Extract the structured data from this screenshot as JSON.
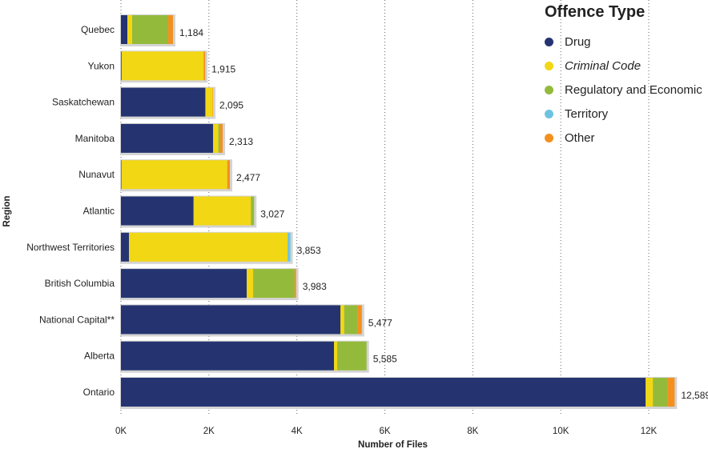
{
  "chart_data": {
    "type": "bar",
    "orientation": "horizontal",
    "stacked": true,
    "title": "",
    "xlabel": "Number of Files",
    "ylabel": "Region",
    "xlim": [
      0,
      12800
    ],
    "xticks": [
      0,
      2000,
      4000,
      6000,
      8000,
      10000,
      12000
    ],
    "xtick_labels": [
      "0K",
      "2K",
      "4K",
      "6K",
      "8K",
      "10K",
      "12K"
    ],
    "grid": "vertical dotted",
    "legend_title": "Offence Type",
    "legend_position": "top-right",
    "categories": [
      "Quebec",
      "Yukon",
      "Saskatchewan",
      "Manitoba",
      "Nunavut",
      "Atlantic",
      "Northwest Territories",
      "British Columbia",
      "National Capital**",
      "Alberta",
      "Ontario"
    ],
    "totals": [
      1184,
      1915,
      2095,
      2313,
      2477,
      3027,
      3853,
      3983,
      5477,
      5585,
      12589
    ],
    "total_labels": [
      "1,184",
      "1,915",
      "2,095",
      "2,313",
      "2,477",
      "3,027",
      "3,853",
      "3,983",
      "5,477",
      "5,585",
      "12,589"
    ],
    "series": [
      {
        "name": "Drug",
        "color": "#253471",
        "values": [
          146,
          15,
          1920,
          2095,
          10,
          1652,
          182,
          2860,
          4991,
          4845,
          11930
        ]
      },
      {
        "name": "Criminal Code",
        "color": "#f2d714",
        "italic": true,
        "values": [
          109,
          1865,
          165,
          120,
          2407,
          1302,
          3607,
          146,
          85,
          73,
          165
        ]
      },
      {
        "name": "Regulatory and Economic",
        "color": "#94ba3b",
        "values": [
          820,
          0,
          0,
          40,
          0,
          73,
          0,
          942,
          310,
          667,
          330
        ]
      },
      {
        "name": "Territory",
        "color": "#6ec4e0",
        "values": [
          0,
          0,
          0,
          0,
          0,
          0,
          64,
          0,
          0,
          0,
          0
        ]
      },
      {
        "name": "Other",
        "color": "#f4901e",
        "values": [
          109,
          35,
          10,
          58,
          60,
          0,
          0,
          35,
          91,
          0,
          164
        ]
      }
    ]
  }
}
